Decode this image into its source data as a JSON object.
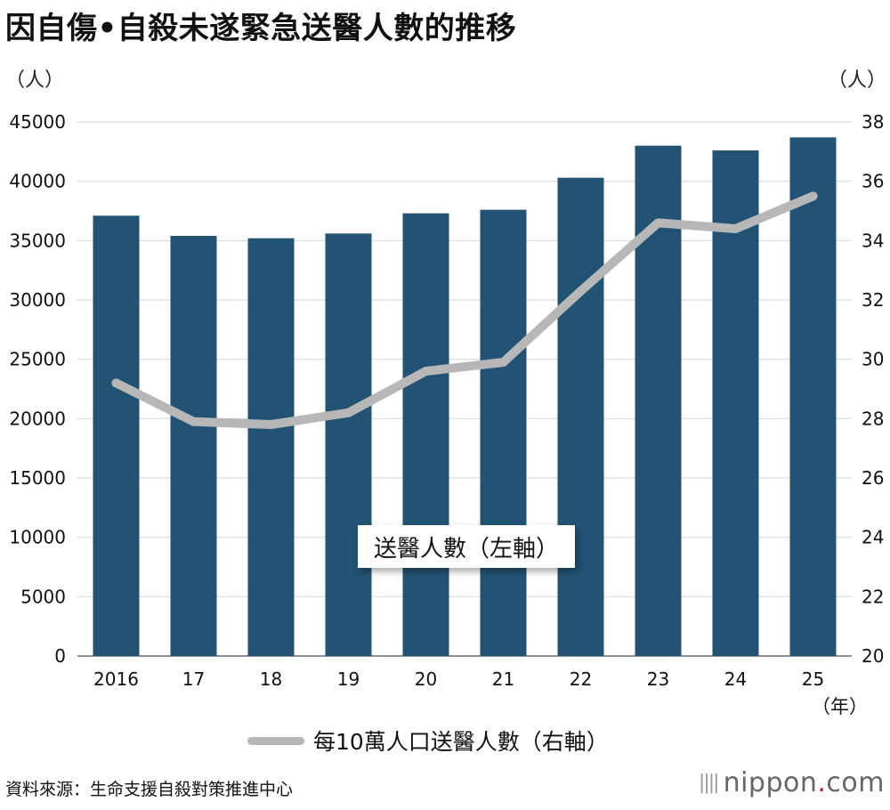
{
  "title": "因自傷•自殺未遂緊急送醫人數的推移",
  "unit_left": "（人）",
  "unit_right": "（人）",
  "year_unit": "（年）",
  "source": "資料來源：生命支援自殺對策推進中心",
  "logo": {
    "name": "nippon",
    "dot": ".",
    "tld": "com"
  },
  "colors": {
    "bar": "#225274",
    "line": "#b7b7b7",
    "grid": "#d9d9d9"
  },
  "chart_data": {
    "type": "bar",
    "categories": [
      "2016",
      "17",
      "18",
      "19",
      "20",
      "21",
      "22",
      "23",
      "24",
      "25"
    ],
    "series": [
      {
        "name": "送醫人數（左軸）",
        "type": "bar",
        "axis": "left",
        "values": [
          37100,
          35400,
          35200,
          35600,
          37300,
          37600,
          40300,
          43000,
          42600,
          43700
        ]
      },
      {
        "name": "每10萬人口送醫人數（右軸）",
        "type": "line",
        "axis": "right",
        "values": [
          29.2,
          27.9,
          27.8,
          28.2,
          29.6,
          29.9,
          32.3,
          34.6,
          34.4,
          35.5
        ]
      }
    ],
    "y_left": {
      "ylim": [
        0,
        45000
      ],
      "ticks": [
        "0",
        "5000",
        "10000",
        "15000",
        "20000",
        "25000",
        "30000",
        "35000",
        "40000",
        "45000"
      ]
    },
    "y_right": {
      "ylim": [
        20,
        38
      ],
      "ticks": [
        "20",
        "22",
        "24",
        "26",
        "28",
        "30",
        "32",
        "34",
        "36",
        "38"
      ]
    },
    "grid": true,
    "legend": "bottom"
  }
}
